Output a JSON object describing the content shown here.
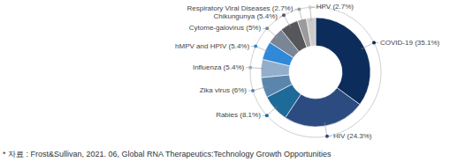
{
  "chart_data": {
    "type": "donut",
    "categories": [
      "COVID-19",
      "HIV",
      "Rabies",
      "Zika virus",
      "Influenza",
      "hMPV and HPIV",
      "Cytome-galovirus",
      "Chikungunya",
      "Respiratory Viral Diseases",
      "HPV"
    ],
    "values": [
      35.1,
      24.3,
      8.1,
      6,
      5.4,
      5.4,
      5,
      5.4,
      2.7,
      2.7
    ],
    "value_labels": [
      "(35.1%)",
      "(24.3%)",
      "(8.1%)",
      "(6%)",
      "(5.4%)",
      "(5.4%)",
      "(5%)",
      "(5.4%)",
      "(2.7%)",
      "(2.7%)"
    ],
    "colors": [
      "#0c2d5c",
      "#2c4b80",
      "#1e6a98",
      "#5a86ad",
      "#93aecb",
      "#2f88d8",
      "#7a8595",
      "#55575a",
      "#9b9b9b",
      "#cccccc"
    ],
    "data_labels": true,
    "annotations": [
      "* 자료 : Frost&Sullivan, 2021. 06, Global RNA Therapeutics:Technology Growth Opportunities"
    ]
  }
}
